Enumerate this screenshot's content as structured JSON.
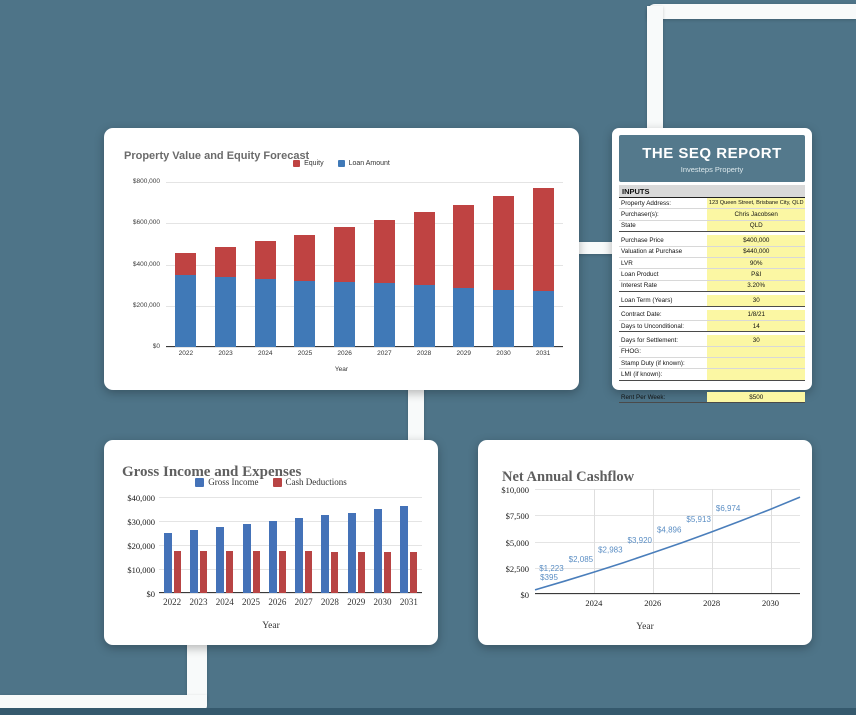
{
  "background": {
    "color": "#4e7488",
    "bottom_strip_color": "#35596d",
    "connector_color": "#f8fafa"
  },
  "chart_data": [
    {
      "id": "property_value_equity",
      "type": "bar",
      "stacked": true,
      "title": "Property Value and Equity Forecast",
      "xlabel": "Year",
      "categories": [
        "2022",
        "2023",
        "2024",
        "2025",
        "2026",
        "2027",
        "2028",
        "2029",
        "2030",
        "2031"
      ],
      "series": [
        {
          "name": "Equity",
          "color": "#bf4342",
          "values": [
            106000,
            145000,
            186000,
            223000,
            266000,
            308000,
            352000,
            401000,
            454000,
            502000
          ]
        },
        {
          "name": "Loan Amount",
          "color": "#4079b7",
          "values": [
            351000,
            341000,
            330000,
            322000,
            314000,
            309000,
            301000,
            287000,
            277000,
            271000
          ]
        }
      ],
      "ylim": [
        0,
        800000
      ],
      "yticks": [
        "$0",
        "$200,000",
        "$400,000",
        "$600,000",
        "$800,000"
      ],
      "legend_position": "top",
      "grid": true
    },
    {
      "id": "gross_income_expenses",
      "type": "bar",
      "stacked": false,
      "title": "Gross Income and Expenses",
      "xlabel": "Year",
      "categories": [
        "2022",
        "2023",
        "2024",
        "2025",
        "2026",
        "2027",
        "2028",
        "2029",
        "2030",
        "2031"
      ],
      "series": [
        {
          "name": "Gross Income",
          "color": "#4472b8",
          "values": [
            25100,
            26300,
            27500,
            28600,
            29900,
            31100,
            32300,
            33500,
            34900,
            36200
          ]
        },
        {
          "name": "Cash Deductions",
          "color": "#b84444",
          "values": [
            17400,
            17400,
            17400,
            17400,
            17400,
            17400,
            17200,
            17100,
            17100,
            17000
          ]
        }
      ],
      "ylim": [
        0,
        40000
      ],
      "yticks": [
        "$0",
        "$10,000",
        "$20,000",
        "$30,000",
        "$40,000"
      ],
      "legend_position": "top",
      "grid": true
    },
    {
      "id": "net_annual_cashflow",
      "type": "line",
      "title": "Net Annual Cashflow",
      "xlabel": "Year",
      "x": [
        2022,
        2023,
        2024,
        2025,
        2026,
        2027,
        2028,
        2029,
        2030,
        2031
      ],
      "values": [
        395,
        1223,
        2085,
        2983,
        3920,
        4896,
        5913,
        6974,
        8079,
        9231
      ],
      "point_labels": [
        "$395",
        "$1,223",
        "$2,085",
        "$2,983",
        "$3,920",
        "$4,896",
        "$5,913",
        "$6,974",
        "",
        ""
      ],
      "line_color": "#4a7ebb",
      "label_color": "#5b8ec4",
      "ylim": [
        0,
        10000
      ],
      "yticks": [
        "$0",
        "$2,500",
        "$5,000",
        "$7,500",
        "$10,000"
      ],
      "xticks": [
        "2024",
        "2026",
        "2028",
        "2030"
      ],
      "grid": true
    }
  ],
  "seq_report": {
    "title": "THE SEQ REPORT",
    "subtitle": "Investeps Property",
    "section_header": "INPUTS",
    "colors": {
      "header_bg": "#54798c",
      "value_bg": "#fbf7a3",
      "section_bg": "#d9d9d9"
    },
    "groups": [
      {
        "rows": [
          {
            "label": "Property Address:",
            "value": "123 Queen Street, Brisbane City, QLD"
          },
          {
            "label": "Purchaser(s):",
            "value": "Chris Jacobsen"
          },
          {
            "label": "State",
            "value": "QLD"
          }
        ]
      },
      {
        "rows": [
          {
            "label": "Purchase Price",
            "value": "$400,000"
          },
          {
            "label": "Valuation at Purchase",
            "value": "$440,000"
          },
          {
            "label": "LVR",
            "value": "90%"
          },
          {
            "label": "Loan Product",
            "value": "P&I"
          },
          {
            "label": "Interest Rate",
            "value": "3.20%"
          }
        ]
      },
      {
        "rows": [
          {
            "label": "Loan Term (Years)",
            "value": "30"
          }
        ]
      },
      {
        "rows": [
          {
            "label": "Contract Date:",
            "value": "1/8/21"
          },
          {
            "label": "Days to Unconditional:",
            "value": "14"
          }
        ]
      },
      {
        "rows": [
          {
            "label": "Days for Settlement:",
            "value": "30"
          },
          {
            "label": "FHOG:",
            "value": ""
          },
          {
            "label": "Stamp Duty (if known):",
            "value": ""
          },
          {
            "label": "LMI (if known):",
            "value": ""
          }
        ]
      },
      {
        "spacer_before": true,
        "rows": [
          {
            "label": "Rent Per Week:",
            "value": "$500"
          }
        ]
      }
    ]
  }
}
